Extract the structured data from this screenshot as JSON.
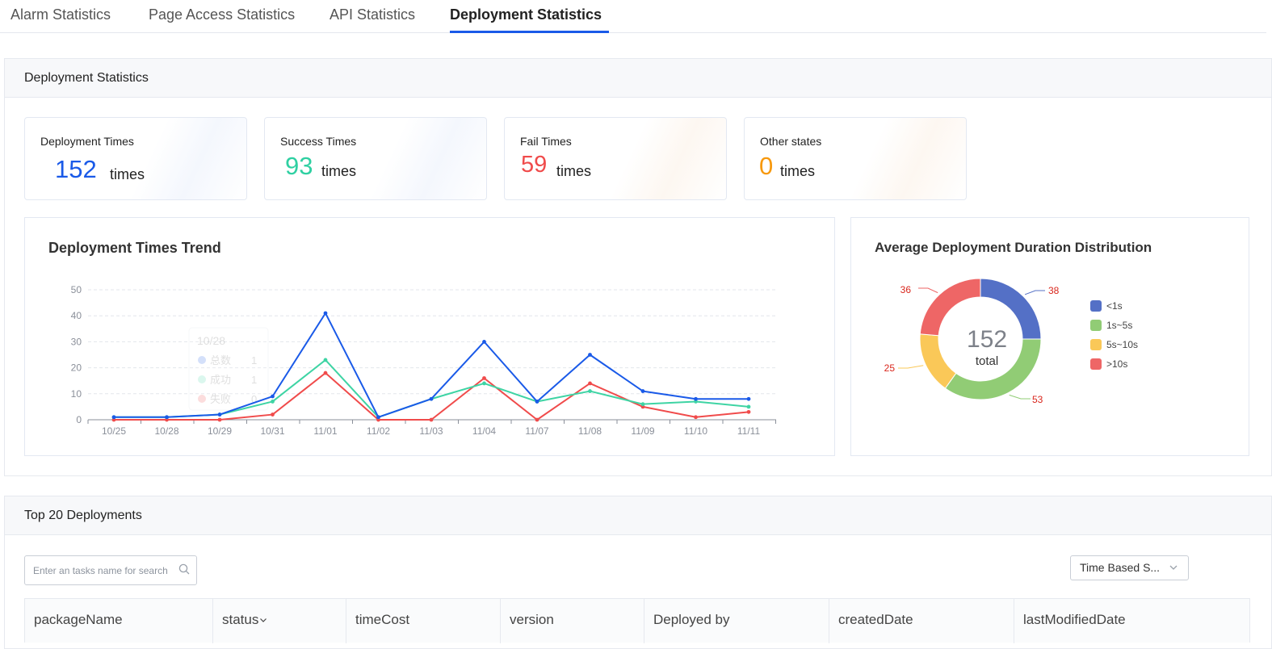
{
  "tabs": [
    {
      "label": "Alarm Statistics",
      "active": false
    },
    {
      "label": "Page Access Statistics",
      "active": false
    },
    {
      "label": "API Statistics",
      "active": false
    },
    {
      "label": "Deployment Statistics",
      "active": true
    }
  ],
  "deployment_section": {
    "title": "Deployment Statistics",
    "cards": [
      {
        "title": "Deployment Times",
        "value": "152",
        "unit": "times",
        "color": "#1a5ae8"
      },
      {
        "title": "Success Times",
        "value": "93",
        "unit": "times",
        "color": "#2fd0a2"
      },
      {
        "title": "Fail Times",
        "value": "59",
        "unit": "times",
        "color": "#f04b4b"
      },
      {
        "title": "Other states",
        "value": "0",
        "unit": "times",
        "color": "#f7990e"
      }
    ]
  },
  "trend_chart": {
    "title": "Deployment Times Trend"
  },
  "distribution_chart": {
    "title": "Average Deployment Duration Distribution"
  },
  "chart_data": [
    {
      "type": "line",
      "title": "Deployment Times Trend",
      "x": [
        "10/25",
        "10/28",
        "10/29",
        "10/31",
        "11/01",
        "11/02",
        "11/03",
        "11/04",
        "11/07",
        "11/08",
        "11/09",
        "11/10",
        "11/11"
      ],
      "ylim": [
        0,
        50
      ],
      "yticks": [
        0,
        10,
        20,
        30,
        40,
        50
      ],
      "grid": true,
      "series": [
        {
          "name": "",
          "color": "#1a5ae8",
          "values": [
            1,
            1,
            2,
            9,
            41,
            1,
            8,
            30,
            7,
            25,
            11,
            8,
            8
          ]
        },
        {
          "name": "",
          "color": "#3ed4a4",
          "values": [
            1,
            1,
            2,
            7,
            23,
            1,
            8,
            14,
            7,
            11,
            6,
            7,
            5
          ]
        },
        {
          "name": "",
          "color": "#f04b4b",
          "values": [
            0,
            0,
            0,
            2,
            18,
            0,
            0,
            16,
            0,
            14,
            5,
            1,
            3
          ]
        }
      ],
      "tooltip": {
        "title": "10/28",
        "rows": [
          {
            "label": "总数",
            "value": "1",
            "color": "#1a5ae8"
          },
          {
            "label": "成功",
            "value": "1",
            "color": "#3ed4a4"
          },
          {
            "label": "失败",
            "value": "0",
            "color": "#f04b4b"
          }
        ]
      }
    },
    {
      "type": "pie",
      "title": "Average Deployment Duration Distribution",
      "center_value": "152",
      "center_label": "total",
      "legend_position": "right",
      "slices": [
        {
          "label": "<1s",
          "value": 38,
          "color": "#5470c6"
        },
        {
          "label": "1s~5s",
          "value": 53,
          "color": "#91cc75"
        },
        {
          "label": "5s~10s",
          "value": 25,
          "color": "#fac858"
        },
        {
          "label": ">10s",
          "value": 36,
          "color": "#ee6666"
        }
      ],
      "value_label_color": "#d9261c"
    }
  ],
  "top_section": {
    "title": "Top 20 Deployments",
    "search_placeholder": "Enter an tasks name for search",
    "sort_select": "Time Based S...",
    "columns": [
      "packageName",
      "status",
      "timeCost",
      "version",
      "Deployed by",
      "createdDate",
      "lastModifiedDate"
    ]
  }
}
